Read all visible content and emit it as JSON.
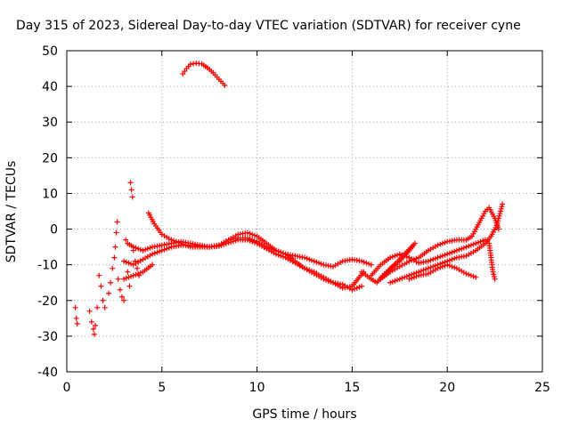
{
  "chart_data": {
    "type": "scatter",
    "title": "Day 315 of 2023, Sidereal Day-to-day VTEC variation (SDTVAR) for receiver cyne",
    "xlabel": "GPS time / hours",
    "ylabel": "SDTVAR / TECUs",
    "xlim": [
      0,
      25
    ],
    "ylim": [
      -40,
      50
    ],
    "x_ticks": [
      "0",
      "5",
      "10",
      "15",
      "20",
      "25"
    ],
    "y_ticks": [
      "-40",
      "-30",
      "-20",
      "-10",
      "0",
      "10",
      "20",
      "30",
      "40",
      "50"
    ],
    "grid": true,
    "marker": "+",
    "color": "#ff0000",
    "series": [
      {
        "name": "arc-high",
        "points": [
          [
            6.1,
            43.5
          ],
          [
            6.3,
            45
          ],
          [
            6.5,
            46.2
          ],
          [
            6.8,
            46.5
          ],
          [
            7.1,
            46.3
          ],
          [
            7.4,
            45.2
          ],
          [
            7.7,
            43.8
          ],
          [
            8.0,
            42
          ],
          [
            8.3,
            40.3
          ]
        ]
      },
      {
        "name": "early-scatter",
        "points": [
          [
            0.45,
            -22
          ],
          [
            0.5,
            -25
          ],
          [
            0.55,
            -26.5
          ],
          [
            1.2,
            -23
          ],
          [
            1.3,
            -26
          ],
          [
            1.4,
            -28
          ],
          [
            1.45,
            -29.5
          ],
          [
            1.5,
            -27
          ],
          [
            1.6,
            -22
          ],
          [
            1.7,
            -13
          ],
          [
            1.8,
            -16
          ],
          [
            1.9,
            -20
          ],
          [
            2.0,
            -22
          ],
          [
            2.2,
            -18
          ],
          [
            2.3,
            -15
          ],
          [
            2.4,
            -11
          ],
          [
            2.5,
            -8
          ],
          [
            2.55,
            -5
          ],
          [
            2.6,
            -1
          ],
          [
            2.65,
            2
          ],
          [
            2.7,
            -14
          ],
          [
            2.8,
            -17
          ],
          [
            2.9,
            -19
          ],
          [
            3.0,
            -20
          ],
          [
            3.1,
            -3
          ],
          [
            3.2,
            -12
          ],
          [
            3.3,
            -16
          ],
          [
            3.35,
            13
          ],
          [
            3.4,
            11
          ],
          [
            3.45,
            9
          ],
          [
            3.5,
            -6
          ],
          [
            3.6,
            -9
          ],
          [
            3.7,
            -11
          ],
          [
            3.8,
            -13
          ]
        ]
      },
      {
        "name": "track-a",
        "points": [
          [
            3.2,
            -4
          ],
          [
            3.5,
            -5
          ],
          [
            4.0,
            -6
          ],
          [
            4.5,
            -5
          ],
          [
            5.0,
            -4.5
          ],
          [
            5.5,
            -4
          ],
          [
            6.0,
            -3.5
          ],
          [
            6.5,
            -4
          ],
          [
            7.0,
            -4.5
          ],
          [
            7.5,
            -5
          ],
          [
            8.0,
            -4.5
          ],
          [
            8.5,
            -3
          ],
          [
            9.0,
            -1.5
          ],
          [
            9.5,
            -1
          ],
          [
            10.0,
            -2
          ],
          [
            10.5,
            -4
          ],
          [
            11.0,
            -6
          ],
          [
            11.5,
            -7
          ],
          [
            12.0,
            -7.5
          ],
          [
            12.5,
            -8
          ],
          [
            13.0,
            -9
          ],
          [
            13.5,
            -10
          ],
          [
            14.0,
            -10.5
          ],
          [
            14.5,
            -9
          ],
          [
            15.0,
            -8.5
          ],
          [
            15.5,
            -9
          ],
          [
            16.0,
            -10
          ]
        ]
      },
      {
        "name": "track-b",
        "points": [
          [
            4.3,
            4.5
          ],
          [
            4.6,
            1.5
          ],
          [
            5.0,
            -1.5
          ],
          [
            5.5,
            -3
          ],
          [
            6.0,
            -4
          ],
          [
            6.5,
            -5
          ],
          [
            7.0,
            -5
          ],
          [
            7.5,
            -5
          ],
          [
            8.0,
            -4.5
          ],
          [
            8.5,
            -3
          ],
          [
            9.0,
            -2.5
          ],
          [
            9.5,
            -2.5
          ],
          [
            10.0,
            -3.5
          ],
          [
            10.5,
            -5
          ],
          [
            11.0,
            -6
          ],
          [
            11.5,
            -7
          ],
          [
            12.0,
            -9
          ],
          [
            12.5,
            -11
          ],
          [
            13.0,
            -12
          ],
          [
            13.5,
            -13.5
          ],
          [
            14.0,
            -15
          ],
          [
            14.5,
            -16.5
          ],
          [
            15.0,
            -16
          ],
          [
            15.3,
            -14
          ],
          [
            15.6,
            -12
          ]
        ]
      },
      {
        "name": "track-c",
        "points": [
          [
            3.0,
            -9
          ],
          [
            3.5,
            -10
          ],
          [
            4.0,
            -8.5
          ],
          [
            4.5,
            -7
          ],
          [
            5.0,
            -6
          ],
          [
            5.5,
            -5
          ],
          [
            6.0,
            -4.5
          ],
          [
            6.5,
            -4.5
          ],
          [
            7.0,
            -4.8
          ],
          [
            7.5,
            -5
          ],
          [
            8.0,
            -4.8
          ],
          [
            8.5,
            -3.8
          ],
          [
            9.0,
            -3
          ],
          [
            9.5,
            -3
          ],
          [
            10.0,
            -4
          ],
          [
            10.5,
            -5.5
          ],
          [
            11.0,
            -7
          ],
          [
            11.5,
            -8
          ],
          [
            12.0,
            -9.5
          ],
          [
            12.5,
            -11
          ],
          [
            13.0,
            -12.5
          ],
          [
            13.5,
            -14
          ],
          [
            14.0,
            -15
          ],
          [
            14.5,
            -15.5
          ],
          [
            15.0,
            -17
          ],
          [
            15.5,
            -16
          ]
        ]
      },
      {
        "name": "track-d",
        "points": [
          [
            3.0,
            -14
          ],
          [
            3.5,
            -13
          ],
          [
            4.0,
            -12
          ],
          [
            4.5,
            -10
          ]
        ]
      },
      {
        "name": "late-tracks",
        "points": [
          [
            15.5,
            -12
          ],
          [
            16.0,
            -14
          ],
          [
            16.3,
            -15
          ],
          [
            16.6,
            -13
          ],
          [
            17.0,
            -11
          ],
          [
            17.5,
            -9
          ],
          [
            18.0,
            -6
          ],
          [
            18.3,
            -4
          ],
          [
            16.5,
            -14
          ],
          [
            17.0,
            -12
          ],
          [
            17.5,
            -10.5
          ],
          [
            18.0,
            -9
          ],
          [
            18.5,
            -8
          ],
          [
            19.0,
            -6
          ],
          [
            19.5,
            -4.5
          ],
          [
            20.0,
            -3.5
          ],
          [
            20.5,
            -3
          ],
          [
            21.0,
            -3
          ],
          [
            21.3,
            -2
          ],
          [
            21.5,
            0
          ],
          [
            21.8,
            3
          ],
          [
            22.0,
            5
          ],
          [
            22.2,
            6
          ],
          [
            22.5,
            3
          ],
          [
            22.7,
            0
          ],
          [
            17.0,
            -15
          ],
          [
            17.5,
            -14
          ],
          [
            18.0,
            -13
          ],
          [
            18.5,
            -12
          ],
          [
            19.0,
            -11
          ],
          [
            19.5,
            -10
          ],
          [
            20.0,
            -9
          ],
          [
            20.5,
            -8
          ],
          [
            21.0,
            -7.5
          ],
          [
            21.5,
            -6
          ],
          [
            22.0,
            -4
          ],
          [
            22.3,
            -2
          ],
          [
            22.6,
            1
          ],
          [
            22.8,
            5
          ],
          [
            22.9,
            7
          ],
          [
            18.0,
            -14
          ],
          [
            18.5,
            -13
          ],
          [
            19.0,
            -12.5
          ],
          [
            19.5,
            -11
          ],
          [
            20.0,
            -10
          ],
          [
            20.5,
            -11
          ],
          [
            21.0,
            -12.5
          ],
          [
            21.5,
            -13.5
          ],
          [
            16.0,
            -13
          ],
          [
            16.5,
            -10
          ],
          [
            17.0,
            -8
          ],
          [
            17.5,
            -7
          ],
          [
            18.0,
            -8
          ],
          [
            18.5,
            -9.5
          ],
          [
            19.0,
            -9
          ],
          [
            19.5,
            -8
          ],
          [
            20.0,
            -7
          ],
          [
            20.5,
            -6
          ],
          [
            21.0,
            -5
          ],
          [
            21.5,
            -4
          ],
          [
            22.0,
            -3
          ],
          [
            22.2,
            -4
          ],
          [
            22.3,
            -8
          ],
          [
            22.4,
            -12
          ],
          [
            22.5,
            -14
          ]
        ]
      }
    ]
  }
}
